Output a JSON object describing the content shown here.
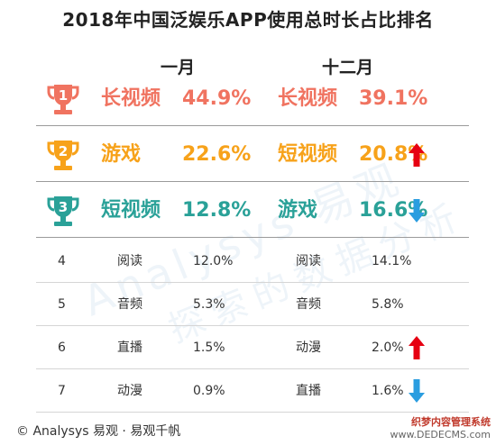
{
  "title": "2018年中国泛娱乐APP使用总时长占比排名",
  "headers": {
    "jan": "一月",
    "dec": "十二月"
  },
  "colors": {
    "rank1": "#f07360",
    "rank2": "#f7a21a",
    "rank3": "#2aa198",
    "up": "#e60012",
    "down": "#2a9de0"
  },
  "chart_data": {
    "type": "table",
    "title": "2018年中国泛娱乐APP使用总时长占比排名",
    "columns": [
      "一月",
      "十二月"
    ],
    "rows": [
      {
        "rank": "1",
        "jan_name": "长视频",
        "jan_value": "44.9%",
        "dec_name": "长视频",
        "dec_value": "39.1%",
        "trend": ""
      },
      {
        "rank": "2",
        "jan_name": "游戏",
        "jan_value": "22.6%",
        "dec_name": "短视频",
        "dec_value": "20.8%",
        "trend": "up"
      },
      {
        "rank": "3",
        "jan_name": "短视频",
        "jan_value": "12.8%",
        "dec_name": "游戏",
        "dec_value": "16.6%",
        "trend": "down"
      },
      {
        "rank": "4",
        "jan_name": "阅读",
        "jan_value": "12.0%",
        "dec_name": "阅读",
        "dec_value": "14.1%",
        "trend": ""
      },
      {
        "rank": "5",
        "jan_name": "音频",
        "jan_value": "5.3%",
        "dec_name": "音频",
        "dec_value": "5.8%",
        "trend": ""
      },
      {
        "rank": "6",
        "jan_name": "直播",
        "jan_value": "1.5%",
        "dec_name": "动漫",
        "dec_value": "2.0%",
        "trend": "up"
      },
      {
        "rank": "7",
        "jan_name": "动漫",
        "jan_value": "0.9%",
        "dec_name": "直播",
        "dec_value": "1.6%",
        "trend": "down"
      }
    ]
  },
  "watermark": {
    "line1": "Analysys 易观",
    "line2": "探索的数据分析"
  },
  "footer": "© Analysys 易观 · 易观千帆",
  "site_badge": {
    "line1": "织梦内容管理系统",
    "line2": "www.DEDECMS.com"
  }
}
